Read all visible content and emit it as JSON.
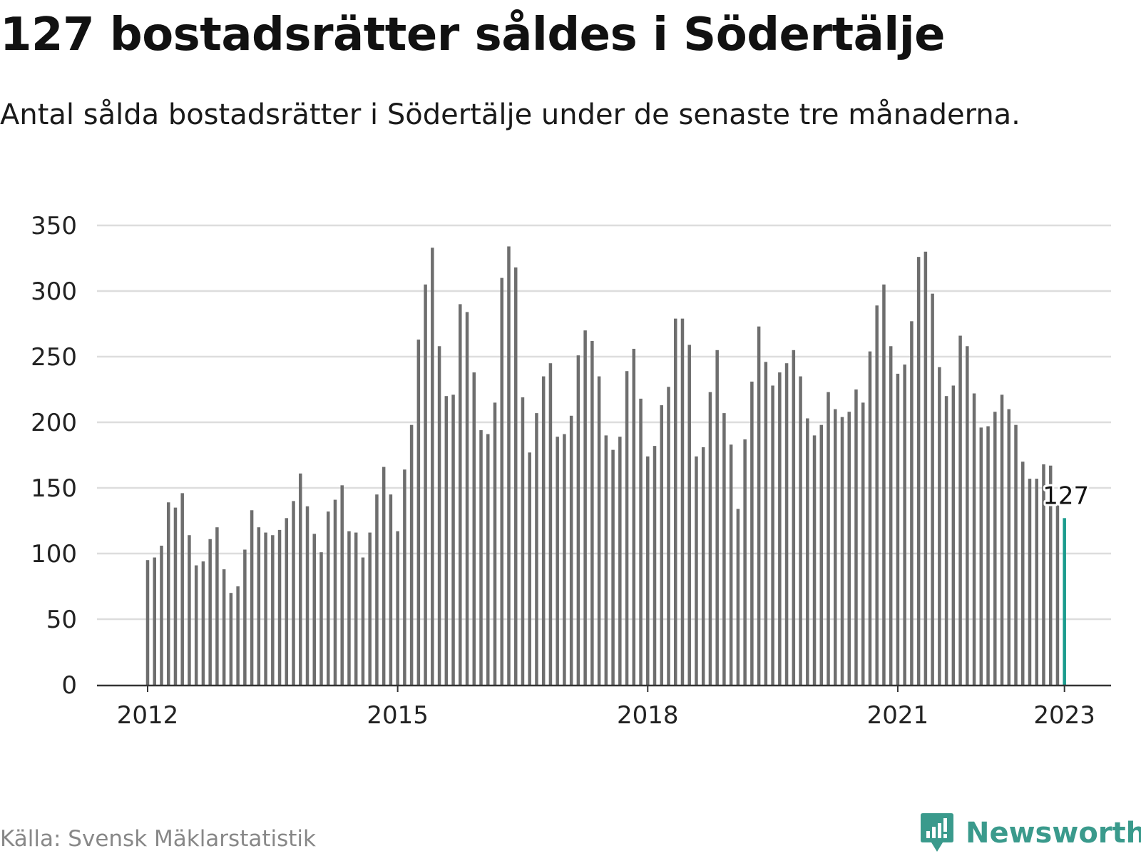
{
  "header": {
    "title": "127 bostadsrätter såldes i Södertälje",
    "subtitle": "Antal sålda bostadsrätter i Södertälje under de senaste tre månaderna."
  },
  "footer": {
    "source": "Källa: Svensk Mäklarstatistik",
    "brand": "Newsworthy"
  },
  "colors": {
    "bar": "#6e6e6e",
    "highlight": "#1a9b8d",
    "grid": "#dddddd",
    "axis": "#333333",
    "brand": "#3a9a8c"
  },
  "chart_data": {
    "type": "bar",
    "title": "127 bostadsrätter såldes i Södertälje",
    "subtitle": "Antal sålda bostadsrätter i Södertälje under de senaste tre månaderna.",
    "xlabel": "",
    "ylabel": "",
    "ylim": [
      0,
      350
    ],
    "yticks": [
      0,
      50,
      100,
      150,
      200,
      250,
      300,
      350
    ],
    "xticks": [
      "2012",
      "2015",
      "2018",
      "2021",
      "2023"
    ],
    "grid": true,
    "x_start": "2012-01",
    "x_end": "2023-01",
    "highlight_label": "127",
    "values": [
      95,
      97,
      106,
      139,
      135,
      146,
      114,
      91,
      94,
      111,
      120,
      88,
      70,
      75,
      103,
      133,
      120,
      116,
      114,
      118,
      127,
      140,
      161,
      136,
      115,
      101,
      132,
      141,
      152,
      117,
      116,
      97,
      116,
      145,
      166,
      145,
      117,
      164,
      198,
      263,
      305,
      333,
      258,
      220,
      221,
      290,
      284,
      238,
      194,
      191,
      215,
      310,
      334,
      318,
      219,
      177,
      207,
      235,
      245,
      189,
      191,
      205,
      251,
      270,
      262,
      235,
      190,
      179,
      189,
      239,
      256,
      218,
      174,
      182,
      213,
      227,
      279,
      279,
      259,
      174,
      181,
      223,
      255,
      207,
      183,
      134,
      187,
      231,
      273,
      246,
      228,
      238,
      245,
      255,
      235,
      203,
      190,
      198,
      223,
      210,
      204,
      208,
      225,
      215,
      254,
      289,
      305,
      258,
      237,
      244,
      277,
      326,
      330,
      298,
      242,
      220,
      228,
      266,
      258,
      222,
      196,
      197,
      208,
      221,
      210,
      198,
      170,
      157,
      157,
      168,
      167,
      137,
      127
    ]
  }
}
